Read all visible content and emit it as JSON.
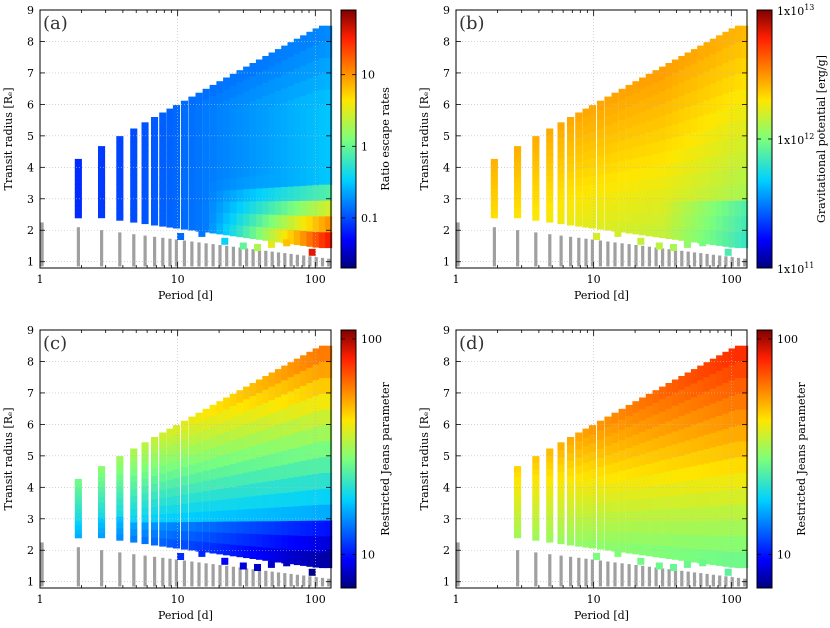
{
  "chart_data": [
    {
      "type": "heatmap",
      "panel_label": "(a)",
      "xlabel": "Period [d]",
      "ylabel": "Transit radius [Rₑ]",
      "xscale": "log",
      "xlim": [
        1,
        130
      ],
      "ylim": [
        0.8,
        9
      ],
      "xticks": [
        "1",
        "10",
        "100"
      ],
      "xtick_values": [
        1,
        10,
        100
      ],
      "yticks": [
        "1",
        "2",
        "3",
        "4",
        "5",
        "6",
        "7",
        "8",
        "9"
      ],
      "colorbar": {
        "label": "Ratio escape rates",
        "scale": "log",
        "range": [
          0.02,
          80
        ],
        "ticks": [
          "0.1",
          "1",
          "10"
        ],
        "tick_values": [
          0.1,
          1,
          10
        ],
        "colormap": "jet"
      },
      "description_series": "planet grid colored by escape rate ratio; grey points below threshold"
    },
    {
      "type": "heatmap",
      "panel_label": "(b)",
      "xlabel": "Period [d]",
      "ylabel": "Transit radius [Rₑ]",
      "xscale": "log",
      "xlim": [
        1,
        130
      ],
      "ylim": [
        0.8,
        9
      ],
      "xticks": [
        "1",
        "10",
        "100"
      ],
      "xtick_values": [
        1,
        10,
        100
      ],
      "yticks": [
        "1",
        "2",
        "3",
        "4",
        "5",
        "6",
        "7",
        "8",
        "9"
      ],
      "colorbar": {
        "label": "Gravitational potential [erg/g]",
        "scale": "log",
        "range": [
          100000000000.0,
          10000000000000.0
        ],
        "ticks_base": [
          "1x10",
          "1x10",
          "1x10"
        ],
        "ticks_exp": [
          "11",
          "12",
          "13"
        ],
        "tick_values": [
          100000000000.0,
          1000000000000.0,
          10000000000000.0
        ],
        "colormap": "jet"
      }
    },
    {
      "type": "heatmap",
      "panel_label": "(c)",
      "xlabel": "Period [d]",
      "ylabel": "Transit radius [Rₑ]",
      "xscale": "log",
      "xlim": [
        1,
        130
      ],
      "ylim": [
        0.8,
        9
      ],
      "xticks": [
        "1",
        "10",
        "100"
      ],
      "xtick_values": [
        1,
        10,
        100
      ],
      "yticks": [
        "1",
        "2",
        "3",
        "4",
        "5",
        "6",
        "7",
        "8",
        "9"
      ],
      "colorbar": {
        "label": "Restricted Jeans parameter",
        "scale": "log",
        "range": [
          7,
          110
        ],
        "ticks": [
          "10",
          "100"
        ],
        "tick_values": [
          10,
          100
        ],
        "colormap": "jet"
      }
    },
    {
      "type": "heatmap",
      "panel_label": "(d)",
      "xlabel": "Period [d]",
      "ylabel": "Transit radius [Rₑ]",
      "xscale": "log",
      "xlim": [
        1,
        130
      ],
      "ylim": [
        0.8,
        9
      ],
      "xticks": [
        "1",
        "10",
        "100"
      ],
      "xtick_values": [
        1,
        10,
        100
      ],
      "yticks": [
        "1",
        "2",
        "3",
        "4",
        "5",
        "6",
        "7",
        "8",
        "9"
      ],
      "colorbar": {
        "label": "Restricted Jeans parameter",
        "scale": "log",
        "range": [
          7,
          110
        ],
        "ticks": [
          "10",
          "100"
        ],
        "tick_values": [
          10,
          100
        ],
        "colormap": "jet"
      }
    }
  ],
  "grid_periods": [
    1,
    1.9,
    2.8,
    3.8,
    4.8,
    5.8,
    6.8,
    7.8,
    8.8,
    9.8,
    11.2,
    12.7,
    14.3,
    16.1,
    18.1,
    20.3,
    22.7,
    25.4,
    28.4,
    31.7,
    35.3,
    39.3,
    43.7,
    48.6,
    54,
    60,
    66.7,
    74.1,
    82.3,
    91.4,
    101.5,
    112.7,
    125
  ]
}
